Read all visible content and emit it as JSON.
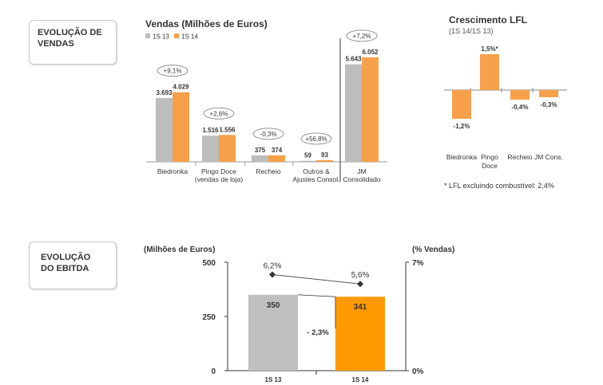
{
  "boxes": {
    "vendas": [
      "EVOLUÇÃO DE",
      "VENDAS"
    ],
    "ebitda": [
      "EVOLUÇÃO",
      "DO EBITDA"
    ]
  },
  "colors": {
    "s13": "#bdbdbd",
    "s14": "#f7a04a",
    "e13": "#c0c0c0",
    "e14": "#ff9900",
    "neg": "#f7a04a"
  },
  "chart_data": [
    {
      "type": "bar",
      "title": "Vendas (Milhões de Euros)",
      "categories": [
        [
          "Biedronka"
        ],
        [
          "Pingo Doce",
          "(vendas de loja)"
        ],
        [
          "Recheio"
        ],
        [
          "Outros &",
          "Ajustes Consol."
        ],
        [
          "JM",
          "Consolidado"
        ]
      ],
      "series": [
        {
          "name": "1S 13",
          "values": [
            3693,
            1516,
            375,
            59,
            5643
          ],
          "labels": [
            "3.693",
            "1.516",
            "375",
            "59",
            "5.643"
          ]
        },
        {
          "name": "1S 14",
          "values": [
            4029,
            1556,
            374,
            93,
            6052
          ],
          "labels": [
            "4.029",
            "1.556",
            "374",
            "93",
            "6.052"
          ]
        }
      ],
      "growth": [
        "+9,1%",
        "+2,6%",
        "-0,3%",
        "+56,8%",
        "+7,2%"
      ],
      "ylim": [
        0,
        6600
      ]
    },
    {
      "type": "bar",
      "title": "Crescimento LFL",
      "subtitle": "(1S 14/1S 13)",
      "categories": [
        [
          "Biedronka"
        ],
        [
          "Pingo",
          "Doce"
        ],
        [
          "Recheio"
        ],
        [
          "JM Cons."
        ]
      ],
      "values": [
        -1.2,
        1.5,
        -0.4,
        -0.3
      ],
      "labels": [
        "-1,2%",
        "1,5%*",
        "-0,4%",
        "-0,3%"
      ],
      "note": "* LFL excluindo combustível: 2,4%",
      "ylim": [
        -1.5,
        1.8
      ]
    },
    {
      "type": "bar",
      "ylabel": "(Milhões de Euros)",
      "y2label": "(% Vendas)",
      "categories": [
        "1S 13",
        "1S 14"
      ],
      "values": [
        350,
        341
      ],
      "labels": [
        "350",
        "341"
      ],
      "ylim": [
        0,
        500
      ],
      "yticks": [
        "0",
        "250",
        "500"
      ],
      "y2ticks": [
        "0%",
        "7%"
      ],
      "margin": {
        "values": [
          6.2,
          5.6
        ],
        "labels": [
          "6,2%",
          "5,6%"
        ]
      },
      "change_label": "- 2,3%"
    }
  ]
}
